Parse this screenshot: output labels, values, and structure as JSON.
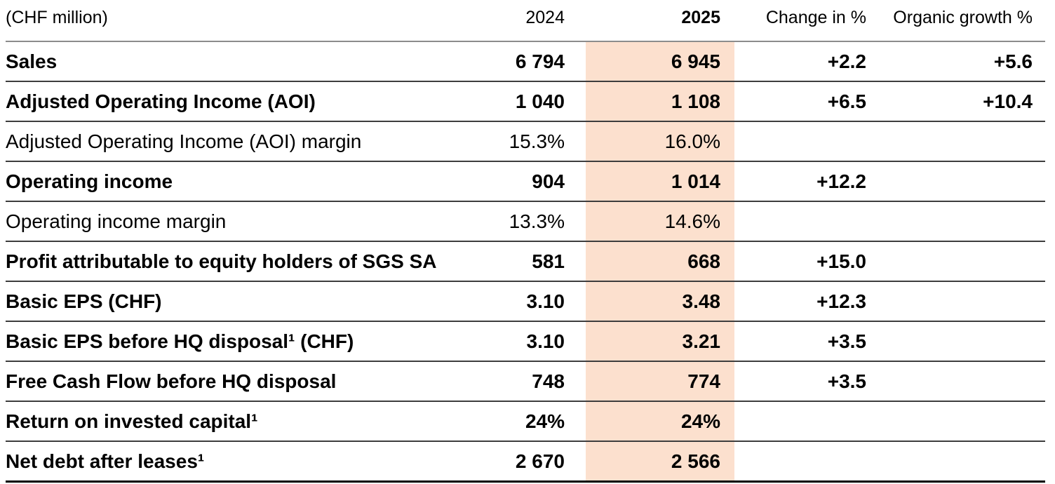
{
  "table": {
    "unit_label": "(CHF million)",
    "columns": {
      "c2024": "2024",
      "c2025": "2025",
      "change": "Change in %",
      "organic": "Organic growth %"
    },
    "highlight_color": "#fce0ce",
    "rows": [
      {
        "label": "Sales",
        "bold": true,
        "v2024": "6 794",
        "v2025": "6 945",
        "change": "+2.2",
        "organic": "+5.6"
      },
      {
        "label": "Adjusted Operating Income (AOI)",
        "bold": true,
        "v2024": "1 040",
        "v2025": "1 108",
        "change": "+6.5",
        "organic": "+10.4"
      },
      {
        "label": "Adjusted Operating Income (AOI) margin",
        "bold": false,
        "v2024": "15.3%",
        "v2025": "16.0%",
        "change": "",
        "organic": ""
      },
      {
        "label": "Operating income",
        "bold": true,
        "v2024": "904",
        "v2025": "1 014",
        "change": "+12.2",
        "organic": ""
      },
      {
        "label": "Operating income margin",
        "bold": false,
        "v2024": "13.3%",
        "v2025": "14.6%",
        "change": "",
        "organic": ""
      },
      {
        "label": "Profit attributable to equity holders of SGS SA",
        "bold": true,
        "v2024": "581",
        "v2025": "668",
        "change": "+15.0",
        "organic": ""
      },
      {
        "label": "Basic EPS (CHF)",
        "bold": true,
        "v2024": "3.10",
        "v2025": "3.48",
        "change": "+12.3",
        "organic": ""
      },
      {
        "label": "Basic EPS before HQ disposal¹ (CHF)",
        "bold": true,
        "v2024": "3.10",
        "v2025": "3.21",
        "change": "+3.5",
        "organic": ""
      },
      {
        "label": "Free Cash Flow before HQ disposal",
        "bold": true,
        "v2024": "748",
        "v2025": "774",
        "change": "+3.5",
        "organic": ""
      },
      {
        "label": "Return on invested capital¹",
        "bold": true,
        "v2024": "24%",
        "v2025": "24%",
        "change": "",
        "organic": ""
      },
      {
        "label": "Net debt after leases¹",
        "bold": true,
        "v2024": "2 670",
        "v2025": "2 566",
        "change": "",
        "organic": ""
      }
    ]
  }
}
